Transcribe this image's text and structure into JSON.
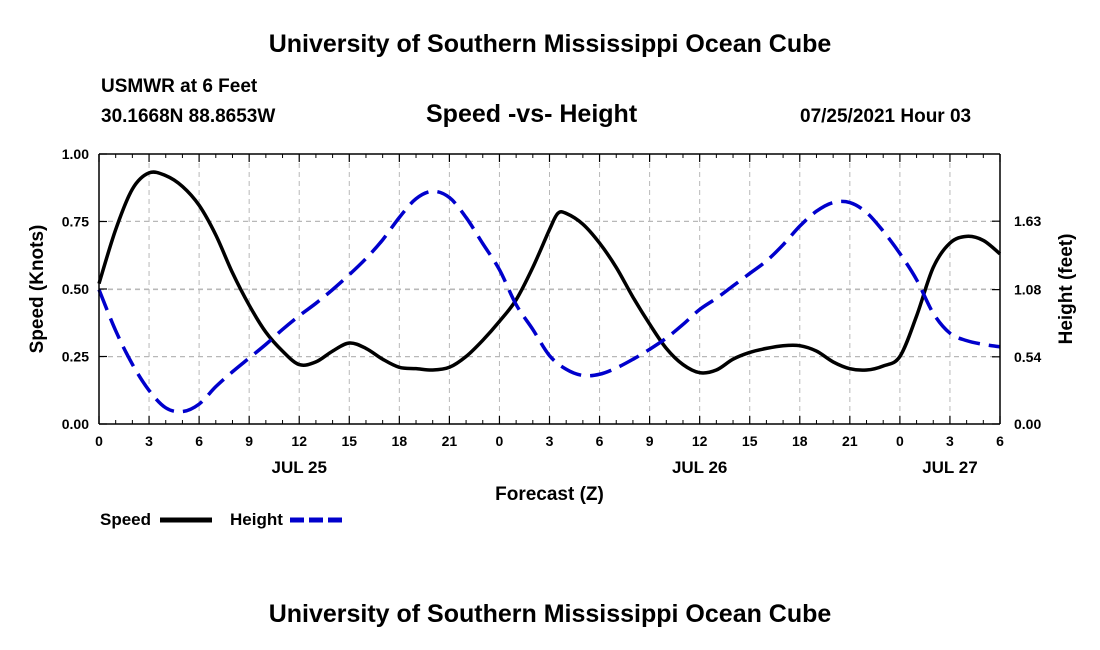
{
  "header": {
    "top_title": "University of Southern Mississippi Ocean Cube",
    "station": "USMWR at 6 Feet",
    "coords": "30.1668N  88.8653W",
    "chart_title": "Speed -vs- Height",
    "date": "07/25/2021 Hour 03",
    "bottom_title": "University of Southern Mississippi Ocean Cube"
  },
  "chart_data": {
    "type": "line",
    "xlabel": "Forecast (Z)",
    "ylabel": "Speed (Knots)",
    "y2label": "Height (feet)",
    "x_hours_range": [
      0,
      54
    ],
    "ylim": [
      0,
      1.0
    ],
    "y2lim": [
      0,
      2.17
    ],
    "x_tick_hours": [
      0,
      3,
      6,
      9,
      12,
      15,
      18,
      21,
      24,
      27,
      30,
      33,
      36,
      39,
      42,
      45,
      48,
      51,
      54
    ],
    "x_tick_labels": [
      "0",
      "3",
      "6",
      "9",
      "12",
      "15",
      "18",
      "21",
      "0",
      "3",
      "6",
      "9",
      "12",
      "15",
      "18",
      "21",
      "0",
      "3",
      "6"
    ],
    "date_labels": [
      {
        "hour": 12,
        "label": "JUL 25"
      },
      {
        "hour": 36,
        "label": "JUL 26"
      },
      {
        "hour": 51,
        "label": "JUL 27"
      }
    ],
    "y_ticks": [
      0,
      0.25,
      0.5,
      0.75,
      1.0
    ],
    "y_tick_labels": [
      "0.00",
      "0.25",
      "0.50",
      "0.75",
      "1.00"
    ],
    "y2_ticks": [
      0,
      0.54,
      1.08,
      1.63
    ],
    "y2_tick_labels": [
      "0.00",
      "0.54",
      "1.08",
      "1.63"
    ],
    "grid": true,
    "legend": [
      {
        "label": "Speed",
        "color": "#000000",
        "dashed": false
      },
      {
        "label": "Height",
        "color": "#0000cc",
        "dashed": true
      }
    ],
    "series": [
      {
        "name": "Speed",
        "axis": "left",
        "color": "#000000",
        "dashed": false,
        "points": [
          [
            0,
            0.52
          ],
          [
            1,
            0.72
          ],
          [
            2,
            0.87
          ],
          [
            3,
            0.93
          ],
          [
            4,
            0.92
          ],
          [
            5,
            0.88
          ],
          [
            6,
            0.81
          ],
          [
            7,
            0.7
          ],
          [
            8,
            0.56
          ],
          [
            9,
            0.44
          ],
          [
            10,
            0.34
          ],
          [
            11,
            0.27
          ],
          [
            12,
            0.22
          ],
          [
            13,
            0.23
          ],
          [
            14,
            0.27
          ],
          [
            15,
            0.3
          ],
          [
            16,
            0.28
          ],
          [
            17,
            0.24
          ],
          [
            18,
            0.21
          ],
          [
            19,
            0.205
          ],
          [
            20,
            0.2
          ],
          [
            21,
            0.21
          ],
          [
            22,
            0.25
          ],
          [
            23,
            0.31
          ],
          [
            24,
            0.38
          ],
          [
            25,
            0.46
          ],
          [
            26,
            0.58
          ],
          [
            27,
            0.72
          ],
          [
            27.5,
            0.78
          ],
          [
            28,
            0.78
          ],
          [
            29,
            0.74
          ],
          [
            30,
            0.67
          ],
          [
            31,
            0.58
          ],
          [
            32,
            0.47
          ],
          [
            33,
            0.37
          ],
          [
            34,
            0.28
          ],
          [
            35,
            0.22
          ],
          [
            36,
            0.19
          ],
          [
            37,
            0.2
          ],
          [
            38,
            0.24
          ],
          [
            39,
            0.265
          ],
          [
            40,
            0.28
          ],
          [
            41,
            0.29
          ],
          [
            42,
            0.29
          ],
          [
            43,
            0.27
          ],
          [
            44,
            0.23
          ],
          [
            45,
            0.205
          ],
          [
            46,
            0.2
          ],
          [
            47,
            0.215
          ],
          [
            48,
            0.25
          ],
          [
            49,
            0.4
          ],
          [
            50,
            0.58
          ],
          [
            51,
            0.67
          ],
          [
            52,
            0.695
          ],
          [
            53,
            0.68
          ],
          [
            54,
            0.63
          ]
        ]
      },
      {
        "name": "Height",
        "axis": "right",
        "color": "#0000cc",
        "dashed": true,
        "points": [
          [
            0,
            1.08
          ],
          [
            1,
            0.75
          ],
          [
            2,
            0.48
          ],
          [
            3,
            0.27
          ],
          [
            4,
            0.13
          ],
          [
            5,
            0.1
          ],
          [
            6,
            0.16
          ],
          [
            7,
            0.3
          ],
          [
            8,
            0.42
          ],
          [
            9,
            0.53
          ],
          [
            10,
            0.64
          ],
          [
            11,
            0.76
          ],
          [
            12,
            0.87
          ],
          [
            13,
            0.97
          ],
          [
            14,
            1.08
          ],
          [
            15,
            1.2
          ],
          [
            16,
            1.33
          ],
          [
            17,
            1.48
          ],
          [
            18,
            1.66
          ],
          [
            19,
            1.81
          ],
          [
            20,
            1.87
          ],
          [
            21,
            1.82
          ],
          [
            22,
            1.66
          ],
          [
            23,
            1.45
          ],
          [
            24,
            1.24
          ],
          [
            25,
            0.96
          ],
          [
            26,
            0.76
          ],
          [
            27,
            0.55
          ],
          [
            28,
            0.44
          ],
          [
            29,
            0.39
          ],
          [
            30,
            0.4
          ],
          [
            31,
            0.45
          ],
          [
            32,
            0.52
          ],
          [
            33,
            0.6
          ],
          [
            34,
            0.69
          ],
          [
            35,
            0.8
          ],
          [
            36,
            0.92
          ],
          [
            37,
            1.01
          ],
          [
            38,
            1.11
          ],
          [
            39,
            1.21
          ],
          [
            40,
            1.31
          ],
          [
            41,
            1.44
          ],
          [
            42,
            1.59
          ],
          [
            43,
            1.71
          ],
          [
            44,
            1.78
          ],
          [
            45,
            1.78
          ],
          [
            46,
            1.7
          ],
          [
            47,
            1.55
          ],
          [
            48,
            1.37
          ],
          [
            49,
            1.16
          ],
          [
            50,
            0.89
          ],
          [
            51,
            0.73
          ],
          [
            52,
            0.67
          ],
          [
            53,
            0.64
          ],
          [
            54,
            0.62
          ]
        ]
      }
    ]
  }
}
